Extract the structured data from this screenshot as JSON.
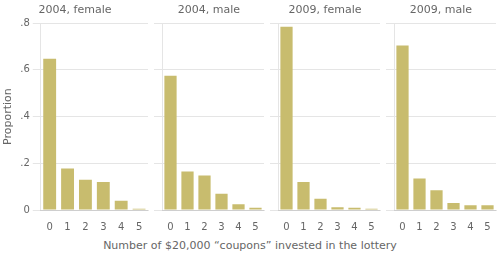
{
  "chart_data": [
    {
      "type": "bar",
      "title": "2004, female",
      "categories": [
        0,
        1,
        2,
        3,
        4,
        5
      ],
      "values": [
        0.648,
        0.178,
        0.13,
        0.12,
        0.04,
        0.005
      ],
      "color": "#c8bc6e",
      "ylim": [
        0,
        0.8
      ],
      "yticks": [
        0,
        {
          "value": 0.2,
          "label": ".2"
        },
        {
          "value": 0.4,
          "label": ".4"
        },
        {
          "value": 0.6,
          "label": ".6"
        },
        {
          "value": 0.8,
          "label": ".8"
        }
      ],
      "ylabel": "Proportion",
      "xlabel": "Number of $20,000 “coupons” invested in the lottery",
      "grid": true
    },
    {
      "type": "bar",
      "title": "2004, male",
      "categories": [
        0,
        1,
        2,
        3,
        4,
        5
      ],
      "values": [
        0.575,
        0.165,
        0.148,
        0.07,
        0.025,
        0.01
      ],
      "color": "#c8bc6e",
      "ylim": [
        0,
        0.8
      ],
      "yticks": [
        0,
        0.2,
        0.4,
        0.6,
        0.8
      ],
      "tick_labels": "x",
      "grid": true
    },
    {
      "type": "bar",
      "title": "2009, female",
      "categories": [
        0,
        1,
        2,
        3,
        4,
        5
      ],
      "values": [
        0.785,
        0.12,
        0.048,
        0.012,
        0.01,
        0.005
      ],
      "color": "#c8bc6e",
      "ylim": [
        0,
        0.8
      ],
      "yticks": [
        0,
        0.2,
        0.4,
        0.6,
        0.8
      ],
      "tick_labels": "x",
      "grid": true
    },
    {
      "type": "bar",
      "title": "2009, male",
      "categories": [
        0,
        1,
        2,
        3,
        4,
        5
      ],
      "values": [
        0.705,
        0.135,
        0.085,
        0.03,
        0.02,
        0.02
      ],
      "color": "#c8bc6e",
      "ylim": [
        0,
        0.8
      ],
      "yticks": [
        0,
        0.2,
        0.4,
        0.6,
        0.8
      ],
      "tick_labels": "x",
      "grid": true
    }
  ]
}
